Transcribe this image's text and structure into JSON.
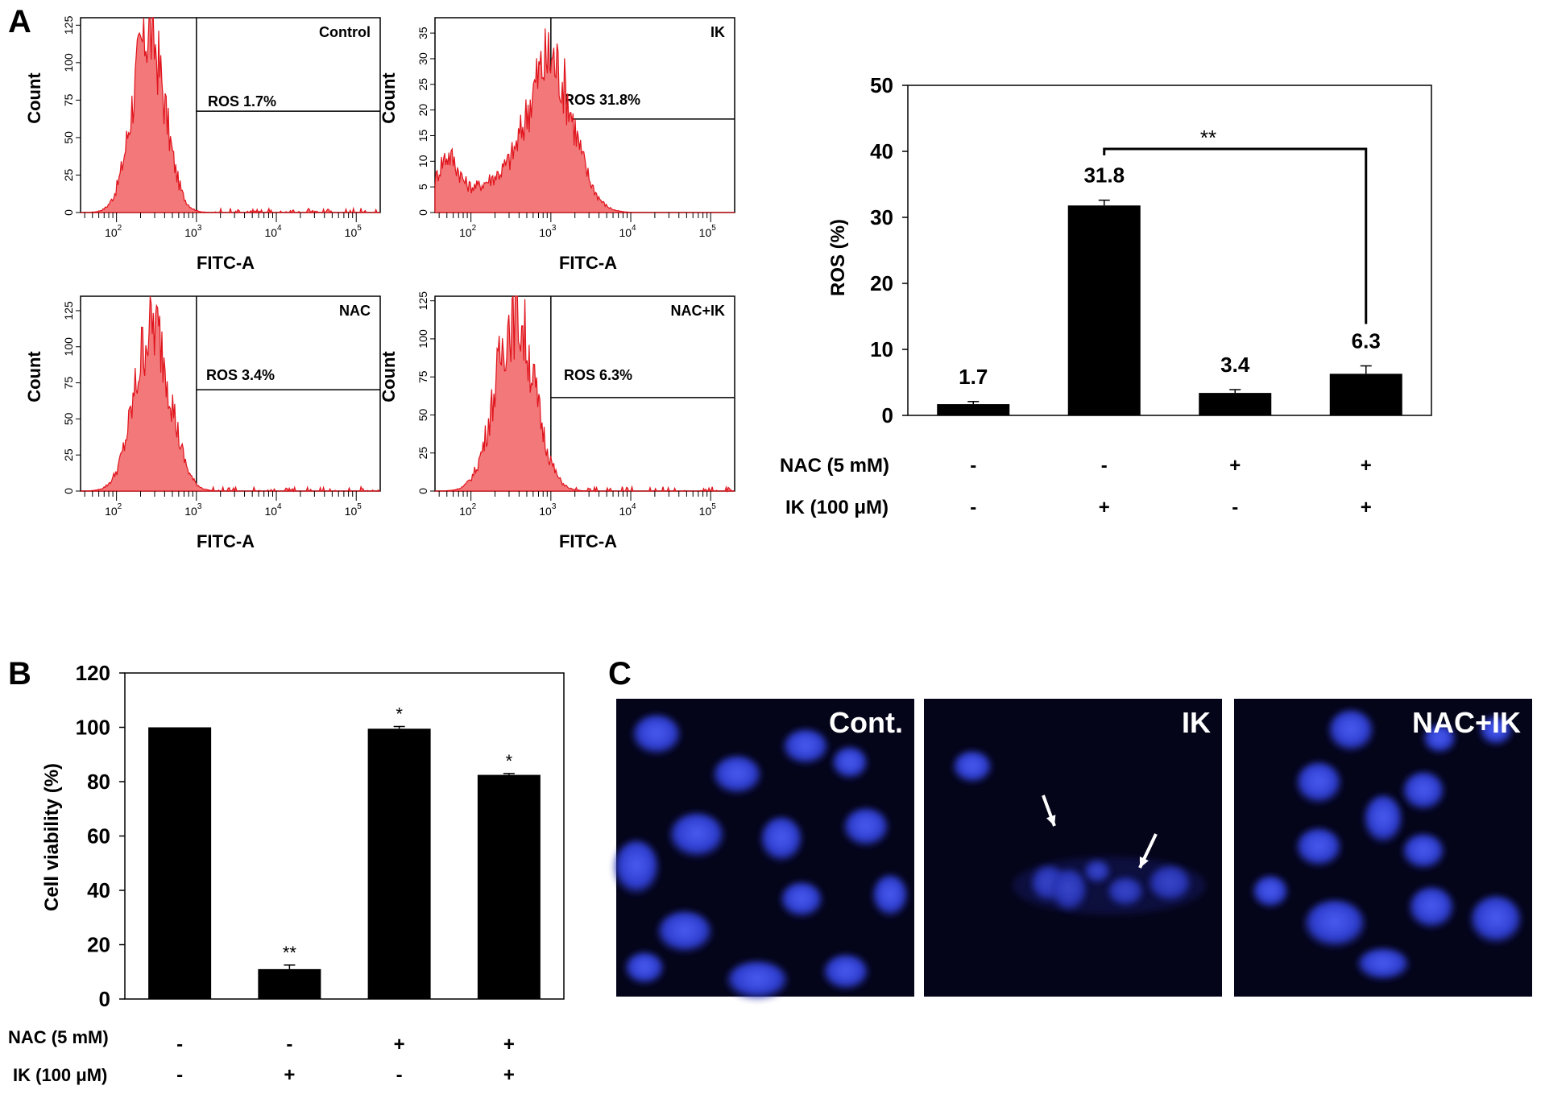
{
  "panel_labels": {
    "a": "A",
    "b": "B",
    "c": "C"
  },
  "histograms": [
    {
      "name": "Control",
      "gate_label": "ROS  1.7%",
      "peaks": [
        {
          "center": 2.4,
          "width": 0.2,
          "height": 125
        }
      ],
      "xlabel": "FITC-A",
      "ylabel": "Count",
      "yticks": [
        "0",
        "25",
        "50",
        "75",
        "100",
        "125"
      ],
      "ymax": 130,
      "gate_frac": 0.48
    },
    {
      "name": "IK",
      "gate_label": "ROS  31.8%",
      "peaks": [
        {
          "center": 1.7,
          "width": 0.14,
          "height": 10
        },
        {
          "center": 3.0,
          "width": 0.28,
          "height": 30
        }
      ],
      "xlabel": "FITC-A",
      "ylabel": "Count",
      "yticks": [
        "0",
        "5",
        "10",
        "15",
        "20",
        "25",
        "30",
        "35"
      ],
      "ymax": 38,
      "gate_frac": 0.52
    },
    {
      "name": "NAC",
      "gate_label": "ROS 3.4%",
      "peaks": [
        {
          "center": 2.45,
          "width": 0.22,
          "height": 118
        }
      ],
      "xlabel": "FITC-A",
      "ylabel": "Count",
      "yticks": [
        "0",
        "25",
        "50",
        "75",
        "100",
        "125"
      ],
      "ymax": 135,
      "gate_frac": 0.48
    },
    {
      "name": "NAC+IK",
      "gate_label": "ROS  6.3%",
      "peaks": [
        {
          "center": 2.55,
          "width": 0.24,
          "height": 120
        }
      ],
      "xlabel": "FITC-A",
      "ylabel": "Count",
      "yticks": [
        "0",
        "25",
        "50",
        "75",
        "100",
        "125"
      ],
      "ymax": 128,
      "gate_frac": 0.52
    }
  ],
  "hist_xticks": [
    "10",
    "10",
    "10",
    "10"
  ],
  "hist_xtick_exps": [
    "2",
    "3",
    "4",
    "5"
  ],
  "chart_data": [
    {
      "type": "bar",
      "panel": "A",
      "ylabel": "ROS (%)",
      "ylim": [
        0,
        50
      ],
      "yticks": [
        0,
        10,
        20,
        30,
        40,
        50
      ],
      "values": [
        1.7,
        31.8,
        3.4,
        6.3
      ],
      "errors": [
        0.4,
        0.8,
        0.5,
        1.2
      ],
      "data_labels": [
        "1.7",
        "31.8",
        "3.4",
        "6.3"
      ],
      "significance": {
        "from": 1,
        "to": 3,
        "label": "**"
      },
      "treatment_rows": [
        {
          "label": "NAC (5 mM)",
          "marks": [
            "-",
            "-",
            "+",
            "+"
          ]
        },
        {
          "label": "IK (100 μM)",
          "marks": [
            "-",
            "+",
            "-",
            "+"
          ]
        }
      ]
    },
    {
      "type": "bar",
      "panel": "B",
      "ylabel": "Cell viability (%)",
      "ylim": [
        0,
        120
      ],
      "yticks": [
        0,
        20,
        40,
        60,
        80,
        100,
        120
      ],
      "values": [
        100,
        11,
        99.5,
        82.5
      ],
      "errors": [
        0,
        1.5,
        0.8,
        0.5
      ],
      "annotations": [
        "",
        "**",
        "*",
        "*"
      ],
      "treatment_rows": [
        {
          "label": "NAC (5 mM)",
          "marks": [
            "-",
            "-",
            "+",
            "+"
          ]
        },
        {
          "label": "IK (100 μM)",
          "marks": [
            "-",
            "+",
            "-",
            "+"
          ]
        }
      ]
    }
  ],
  "micrographs": [
    {
      "label": "Cont."
    },
    {
      "label": "IK"
    },
    {
      "label": "NAC+IK"
    }
  ],
  "colors": {
    "hist_fill": "#f2787a",
    "hist_stroke": "#e0141c",
    "bar": "#000000",
    "micro_bg": "#05051a",
    "nucleus": "#3a4ee8"
  }
}
